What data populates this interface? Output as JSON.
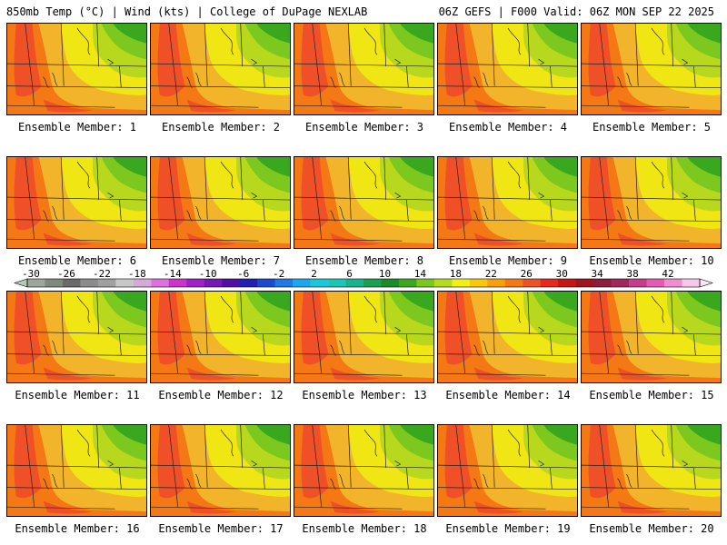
{
  "header": {
    "left_title": "850mb Temp (°C) | Wind (kts) | College of DuPage NEXLAB",
    "right_title": "06Z GEFS | F000 Valid: 06Z MON SEP 22 2025"
  },
  "member_label_prefix": "Ensemble Member:",
  "members": [
    {
      "id": 1,
      "label": "Ensemble Member: 1"
    },
    {
      "id": 2,
      "label": "Ensemble Member: 2"
    },
    {
      "id": 3,
      "label": "Ensemble Member: 3"
    },
    {
      "id": 4,
      "label": "Ensemble Member: 4"
    },
    {
      "id": 5,
      "label": "Ensemble Member: 5"
    },
    {
      "id": 6,
      "label": "Ensemble Member: 6"
    },
    {
      "id": 7,
      "label": "Ensemble Member: 7"
    },
    {
      "id": 8,
      "label": "Ensemble Member: 8"
    },
    {
      "id": 9,
      "label": "Ensemble Member: 9"
    },
    {
      "id": 10,
      "label": "Ensemble Member: 10"
    },
    {
      "id": 11,
      "label": "Ensemble Member: 11"
    },
    {
      "id": 12,
      "label": "Ensemble Member: 12"
    },
    {
      "id": 13,
      "label": "Ensemble Member: 13"
    },
    {
      "id": 14,
      "label": "Ensemble Member: 14"
    },
    {
      "id": 15,
      "label": "Ensemble Member: 15"
    },
    {
      "id": 16,
      "label": "Ensemble Member: 16"
    },
    {
      "id": 17,
      "label": "Ensemble Member: 17"
    },
    {
      "id": 18,
      "label": "Ensemble Member: 18"
    },
    {
      "id": 19,
      "label": "Ensemble Member: 19"
    },
    {
      "id": 20,
      "label": "Ensemble Member: 20"
    }
  ],
  "colorbar": {
    "tick_labels": [
      "-30",
      "-26",
      "-22",
      "-18",
      "-14",
      "-10",
      "-6",
      "-2",
      "2",
      "6",
      "10",
      "14",
      "18",
      "22",
      "26",
      "30",
      "34",
      "38",
      "42"
    ],
    "colors": [
      "#9aa79a",
      "#7f8a7f",
      "#6a6a6a",
      "#8c8c8c",
      "#a0a0a0",
      "#c8c8c8",
      "#d6aad6",
      "#e070e0",
      "#cc33cc",
      "#a020c8",
      "#7818b4",
      "#5010a8",
      "#2020b4",
      "#1a4ad0",
      "#1e78e6",
      "#19a8f0",
      "#19c8d8",
      "#19c8b4",
      "#19b48c",
      "#1aa050",
      "#1a8c28",
      "#3aa81e",
      "#7ac81e",
      "#b4dc1e",
      "#f0f014",
      "#f8c80a",
      "#f8a00a",
      "#f47814",
      "#f05028",
      "#e6281e",
      "#c81414",
      "#a0141e",
      "#8c1e3c",
      "#a0285a",
      "#c83c8c",
      "#e65ab4",
      "#f08cd2",
      "#f8c8ec"
    ]
  }
}
